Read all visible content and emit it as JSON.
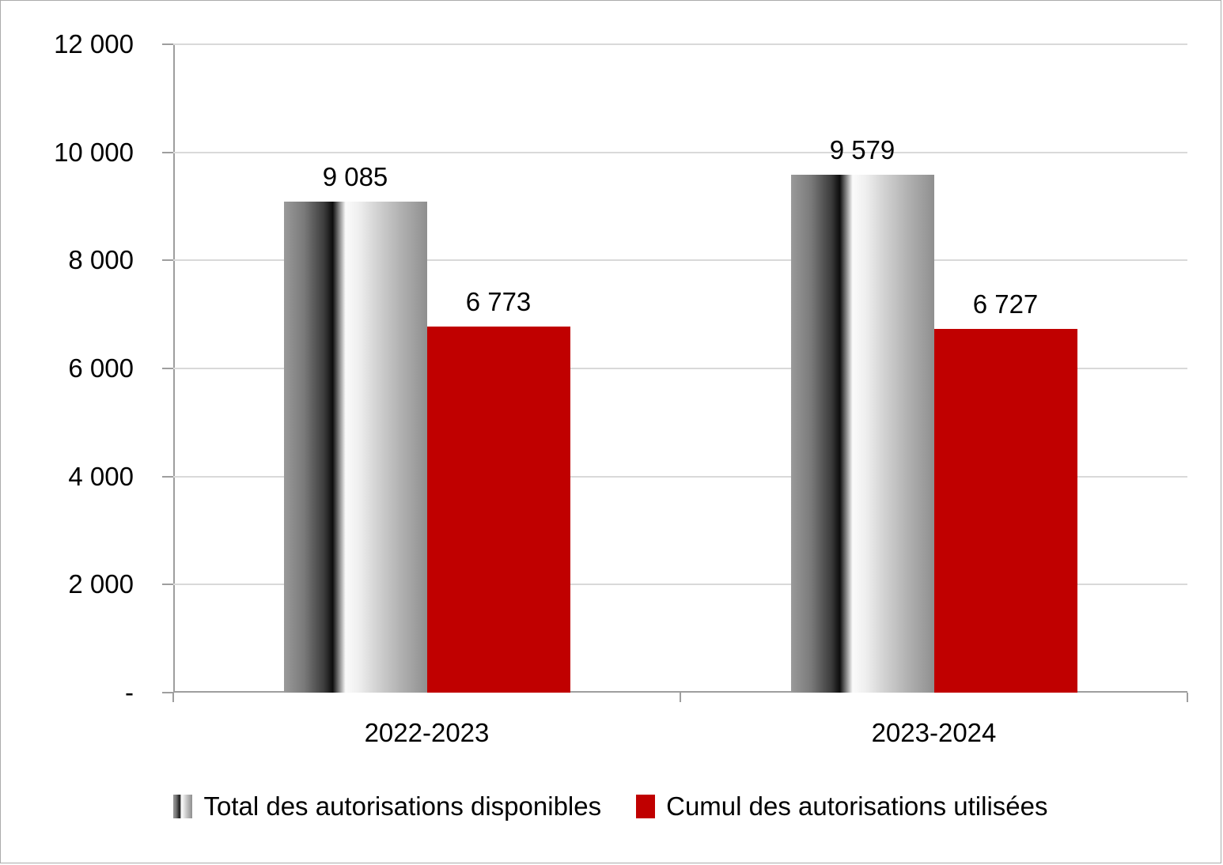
{
  "chart_data": {
    "type": "bar",
    "title": "",
    "categories": [
      "2022-2023",
      "2023-2024"
    ],
    "series": [
      {
        "name": "Total des autorisations disponibles",
        "values": [
          9085,
          9579
        ],
        "value_labels": [
          "9 085",
          "9 579"
        ],
        "fill": "gradient-gray"
      },
      {
        "name": "Cumul des autorisations utilisées",
        "values": [
          6773,
          6727
        ],
        "value_labels": [
          "6 773",
          "6 727"
        ],
        "fill": "#c00000"
      }
    ],
    "ylim": [
      0,
      12000
    ],
    "ytick_step": 2000,
    "ytick_labels": [
      "-",
      "2 000",
      "4 000",
      "6 000",
      "8 000",
      "10 000",
      "12 000"
    ],
    "grid": true,
    "legend_position": "bottom",
    "colors": {
      "red_series": "#c00000",
      "gridline": "#d9d9d9",
      "axis": "#9e9e9e",
      "text": "#000000"
    }
  }
}
